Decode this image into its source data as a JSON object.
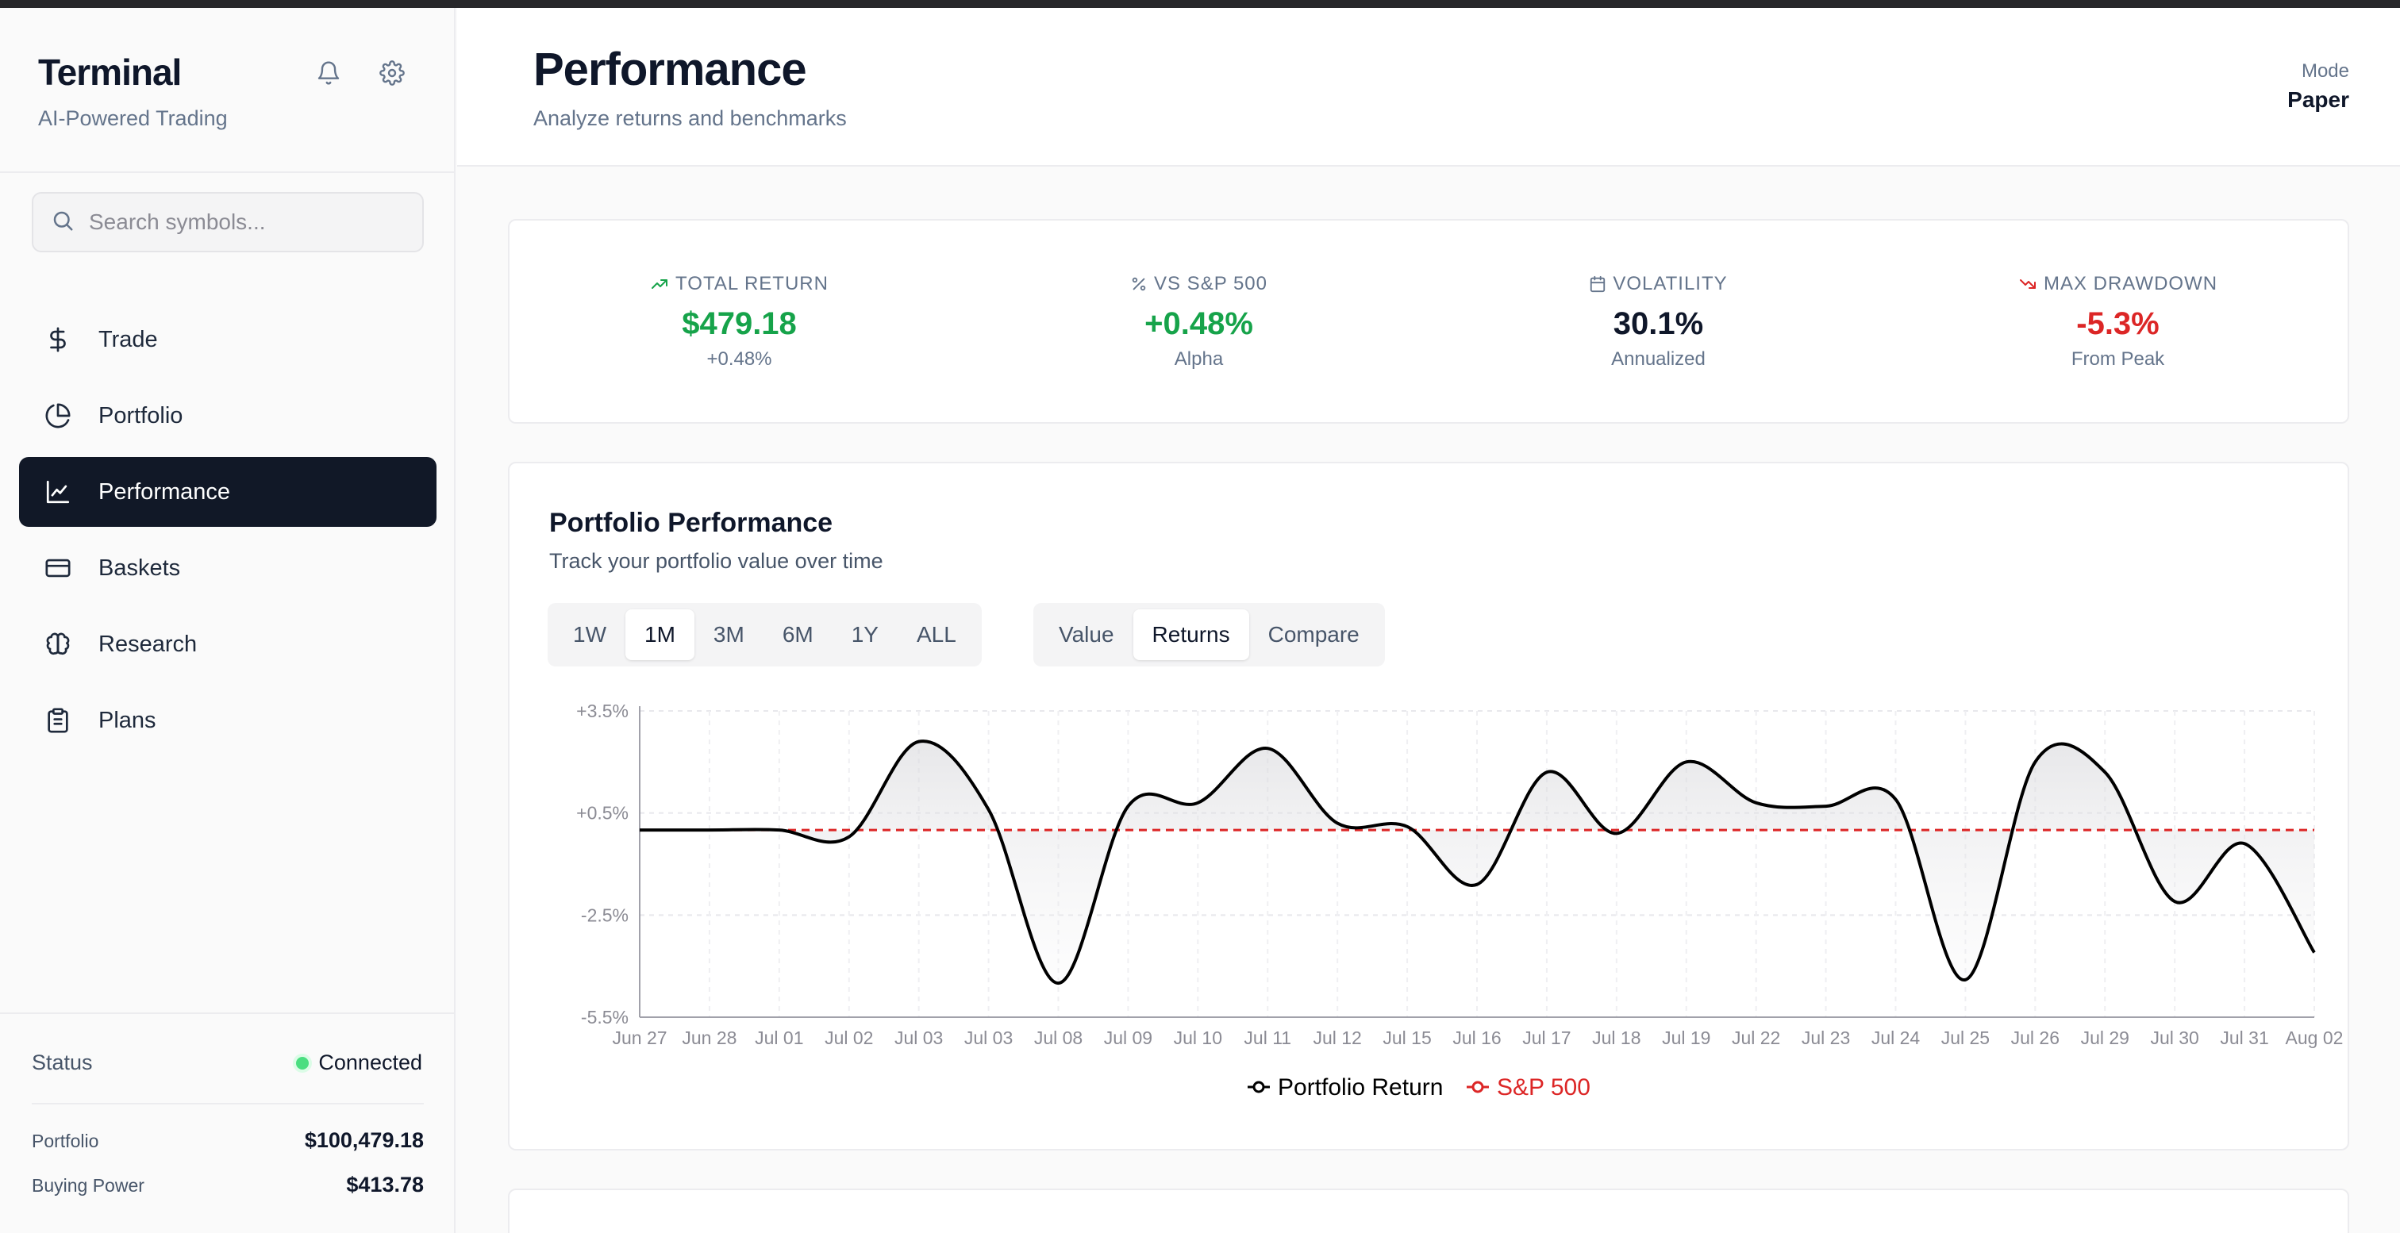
{
  "app": {
    "name": "Terminal",
    "tagline": "AI-Powered Trading"
  },
  "search": {
    "placeholder": "Search symbols..."
  },
  "nav": [
    {
      "label": "Trade",
      "icon": "dollar-icon"
    },
    {
      "label": "Portfolio",
      "icon": "pie-chart-icon"
    },
    {
      "label": "Performance",
      "icon": "line-chart-icon",
      "active": true
    },
    {
      "label": "Baskets",
      "icon": "credit-card-icon"
    },
    {
      "label": "Research",
      "icon": "brain-icon"
    },
    {
      "label": "Plans",
      "icon": "clipboard-icon"
    }
  ],
  "sidebar_footer": {
    "status_label": "Status",
    "status_value": "Connected",
    "portfolio_label": "Portfolio",
    "portfolio_value": "$100,479.18",
    "buying_power_label": "Buying Power",
    "buying_power_value": "$413.78"
  },
  "header": {
    "title": "Performance",
    "subtitle": "Analyze returns and benchmarks",
    "mode_label": "Mode",
    "mode_value": "Paper"
  },
  "stats": [
    {
      "label": "TOTAL RETURN",
      "value": "$479.18",
      "sub": "+0.48%",
      "icon": "trending-up-icon",
      "tone": "green"
    },
    {
      "label": "VS S&P 500",
      "value": "+0.48%",
      "sub": "Alpha",
      "icon": "percent-icon",
      "tone": "green"
    },
    {
      "label": "VOLATILITY",
      "value": "30.1%",
      "sub": "Annualized",
      "icon": "calendar-icon",
      "tone": "dark"
    },
    {
      "label": "MAX DRAWDOWN",
      "value": "-5.3%",
      "sub": "From Peak",
      "icon": "trending-down-icon",
      "tone": "red"
    }
  ],
  "colors": {
    "positive": "#16a34a",
    "negative": "#dc2626",
    "accent_dark": "#111827",
    "benchmark": "#dc2626",
    "portfolio_line": "#000000"
  },
  "chart_card": {
    "title": "Portfolio Performance",
    "subtitle": "Track your portfolio value over time",
    "ranges": [
      "1W",
      "1M",
      "3M",
      "6M",
      "1Y",
      "ALL"
    ],
    "selected_range": "1M",
    "views": [
      "Value",
      "Returns",
      "Compare"
    ],
    "selected_view": "Returns"
  },
  "chart_data": {
    "type": "line",
    "x": [
      "Jun 27",
      "Jun 28",
      "Jul 01",
      "Jul 02",
      "Jul 03",
      "Jul 03",
      "Jul 08",
      "Jul 09",
      "Jul 10",
      "Jul 11",
      "Jul 12",
      "Jul 15",
      "Jul 16",
      "Jul 17",
      "Jul 18",
      "Jul 19",
      "Jul 22",
      "Jul 23",
      "Jul 24",
      "Jul 25",
      "Jul 26",
      "Jul 29",
      "Jul 30",
      "Jul 31",
      "Aug 02"
    ],
    "x_tick_labels": [
      "Jun 27",
      "Jun 28",
      "Jul 01",
      "Jul 02",
      "Jul 03",
      "Jul 03",
      "Jul 08",
      "Jul 09",
      "Jul 10",
      "Jul 11",
      "Jul 12",
      "Jul 15",
      "Jul 16",
      "Jul 17",
      "Jul 18",
      "Jul 19",
      "Jul 22",
      "Jul 23",
      "Jul 24",
      "Jul 25",
      "Jul 26",
      "Jul 29",
      "Jul 30",
      "Jul 31",
      "Aug 02"
    ],
    "series": [
      {
        "name": "Portfolio Return",
        "values": [
          0.0,
          0.0,
          0.0,
          -0.2,
          2.6,
          0.6,
          -4.5,
          0.7,
          0.8,
          2.4,
          0.2,
          0.1,
          -1.6,
          1.7,
          -0.1,
          2.0,
          0.8,
          0.7,
          0.9,
          -4.4,
          2.0,
          1.7,
          -2.1,
          -0.4,
          -3.6
        ]
      },
      {
        "name": "S&P 500",
        "values": [
          0.0,
          0.0,
          0.0,
          0.0,
          0.0,
          0.0,
          0.0,
          0.0,
          0.0,
          0.0,
          0.0,
          0.0,
          0.0,
          0.0,
          0.0,
          0.0,
          0.0,
          0.0,
          0.0,
          0.0,
          0.0,
          0.0,
          0.0,
          0.0,
          0.0
        ]
      }
    ],
    "y_ticks": [
      "+3.5%",
      "+0.5%",
      "-2.5%",
      "-5.5%"
    ],
    "y_tick_values": [
      3.5,
      0.5,
      -2.5,
      -5.5
    ],
    "ylim": [
      -5.5,
      3.5
    ],
    "grid": true,
    "legend": "bottom-center"
  }
}
